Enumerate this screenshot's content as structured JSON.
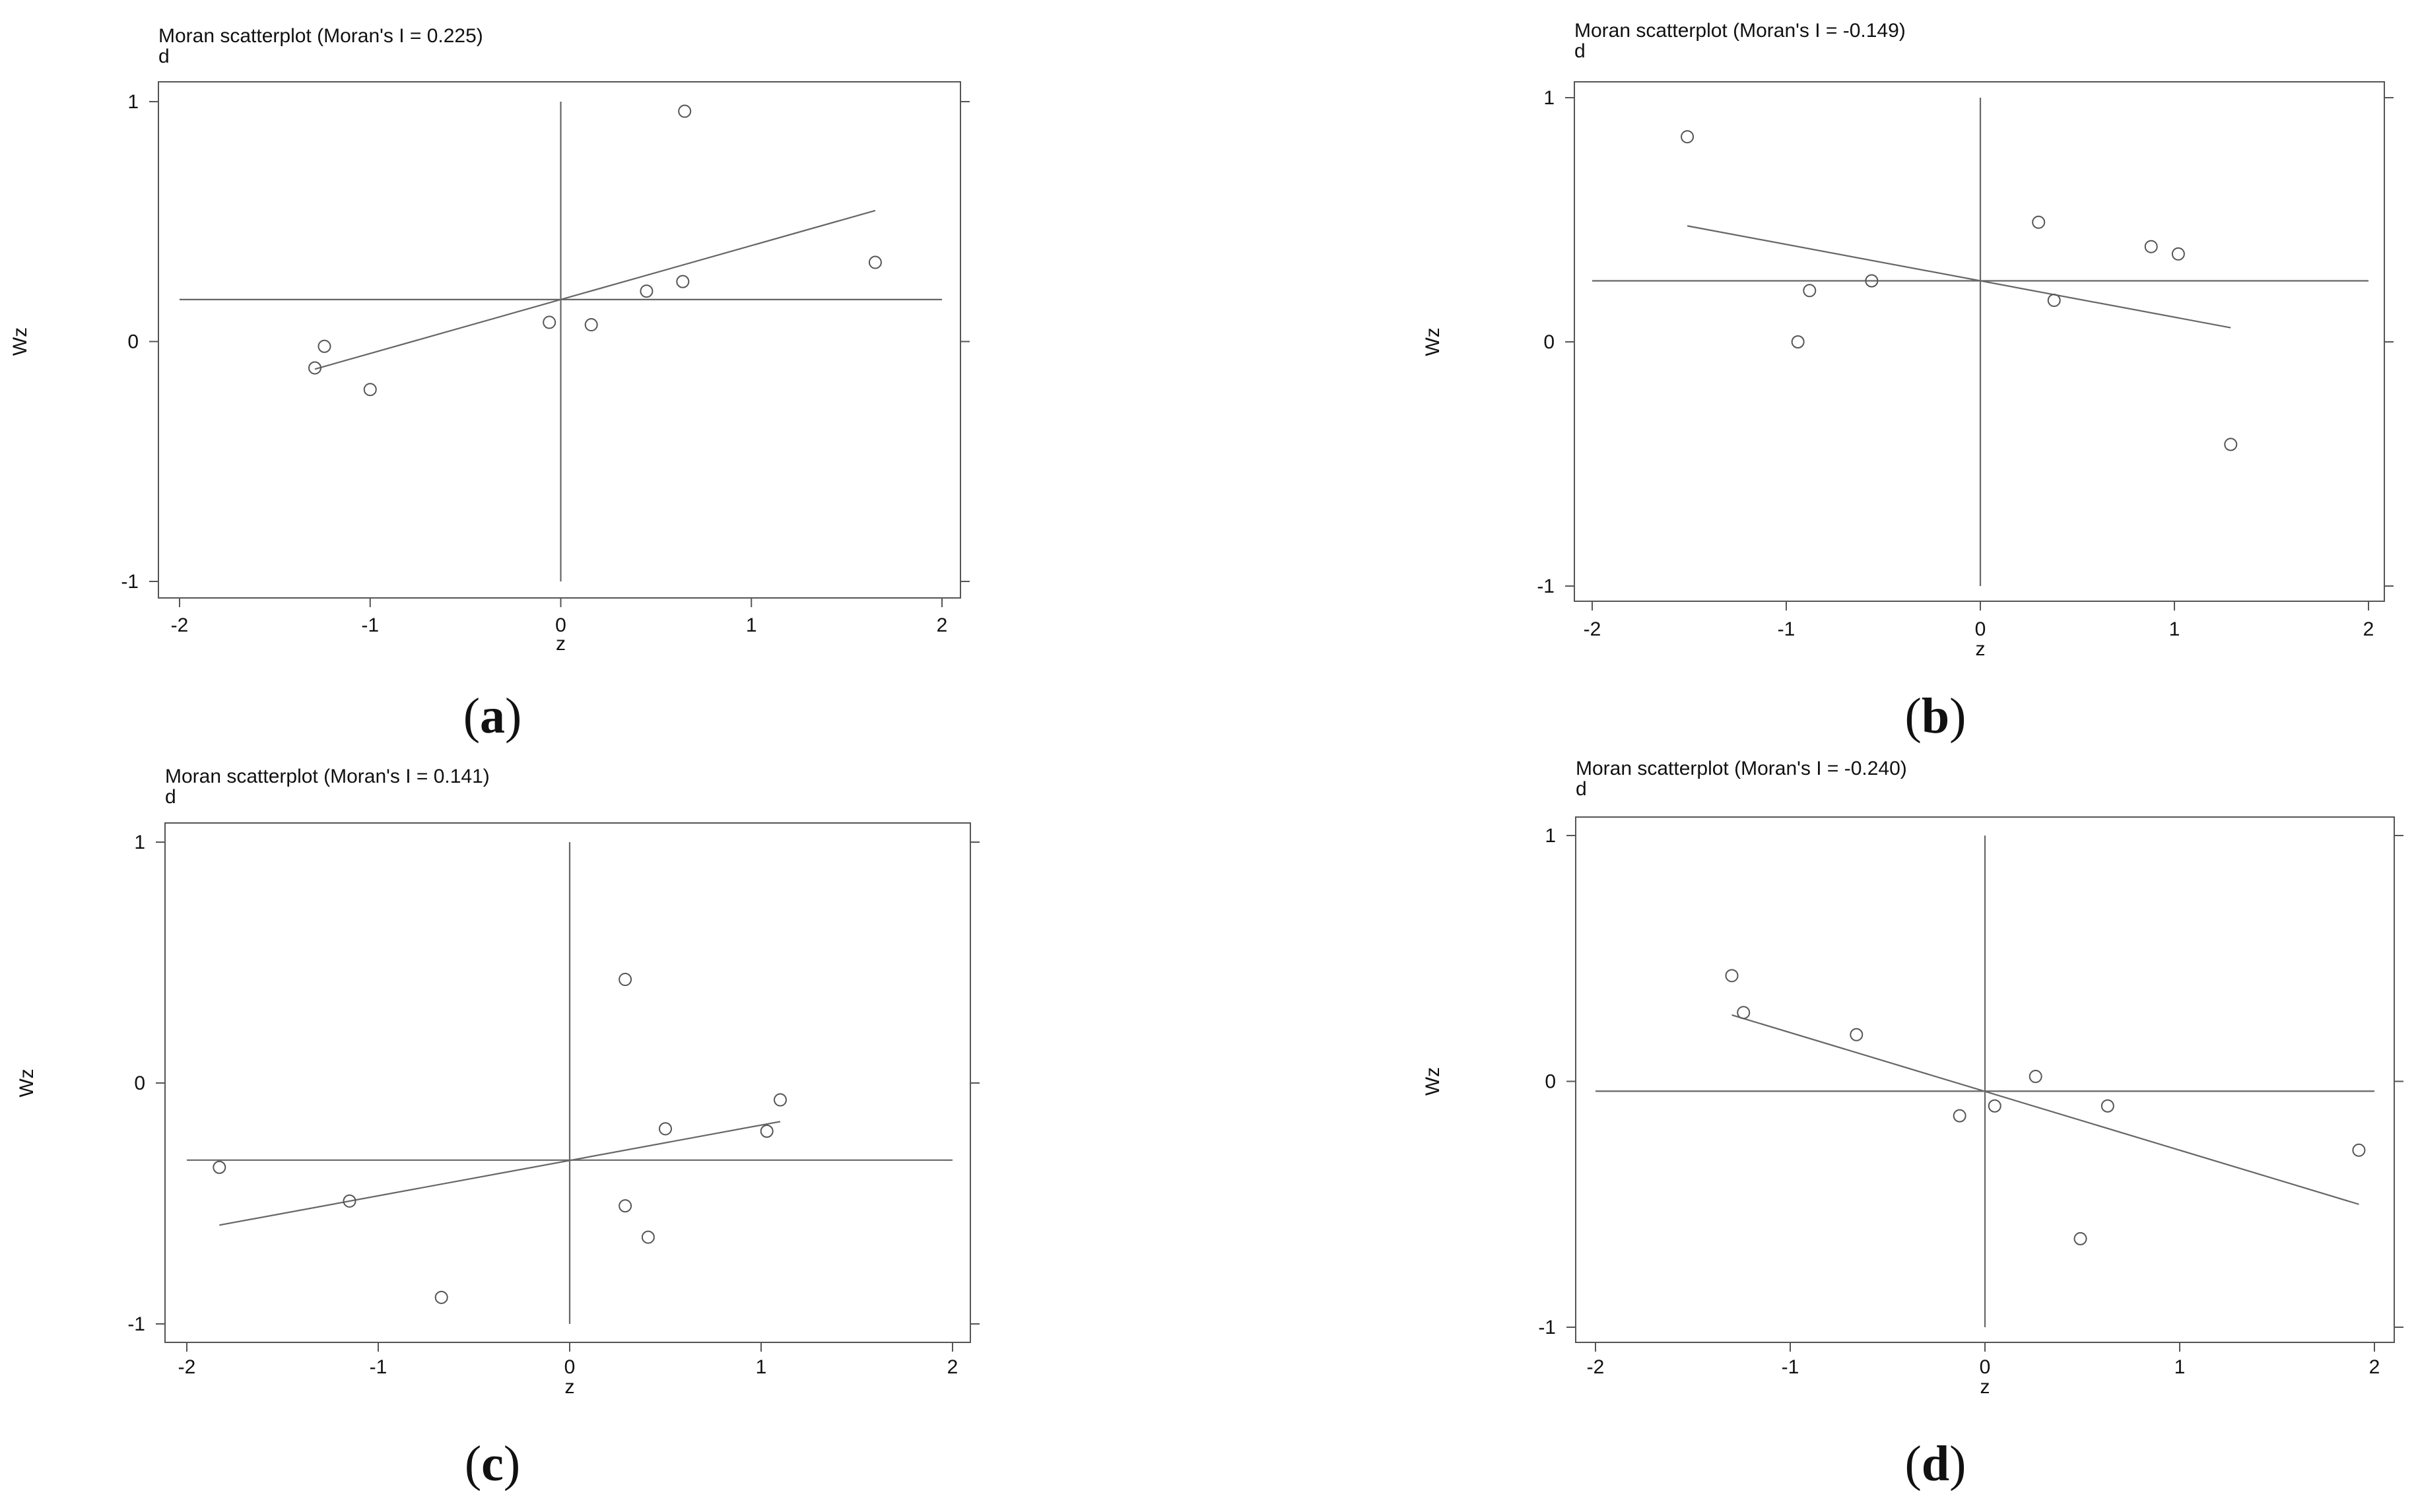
{
  "chart_data": [
    {
      "type": "scatter",
      "panel_label": "a",
      "title": "Moran scatterplot (Moran's I = 0.225)",
      "subtitle": "d",
      "xlabel": "z",
      "ylabel": "Wz",
      "xlim": [
        -2,
        2
      ],
      "ylim": [
        -1,
        1
      ],
      "xticks": [
        -2,
        -1,
        0,
        1,
        2
      ],
      "yticks": [
        -1,
        0,
        1
      ],
      "morans_i": 0.225,
      "mean_x": 0,
      "mean_y": 0.175,
      "points": [
        [
          -1.29,
          -0.11
        ],
        [
          -1.24,
          -0.02
        ],
        [
          -1.0,
          -0.2
        ],
        [
          -0.06,
          0.08
        ],
        [
          0.16,
          0.07
        ],
        [
          0.45,
          0.21
        ],
        [
          0.64,
          0.25
        ],
        [
          0.65,
          0.96
        ],
        [
          1.65,
          0.33
        ]
      ],
      "fit": [
        [
          -1.29,
          -0.115
        ],
        [
          1.65,
          0.546
        ]
      ]
    },
    {
      "type": "scatter",
      "panel_label": "b",
      "title": "Moran scatterplot (Moran's I = -0.149)",
      "subtitle": "d",
      "xlabel": "z",
      "ylabel": "Wz",
      "xlim": [
        -2,
        2
      ],
      "ylim": [
        -1,
        1
      ],
      "xticks": [
        -2,
        -1,
        0,
        1,
        2
      ],
      "yticks": [
        -1,
        0,
        1
      ],
      "morans_i": -0.149,
      "mean_x": 0,
      "mean_y": 0.25,
      "points": [
        [
          -1.51,
          0.84
        ],
        [
          -0.94,
          0.0
        ],
        [
          -0.88,
          0.21
        ],
        [
          -0.56,
          0.25
        ],
        [
          0.3,
          0.49
        ],
        [
          0.38,
          0.17
        ],
        [
          0.88,
          0.39
        ],
        [
          1.02,
          0.36
        ],
        [
          1.29,
          -0.42
        ]
      ],
      "fit": [
        [
          -1.51,
          0.475
        ],
        [
          1.29,
          0.058
        ]
      ]
    },
    {
      "type": "scatter",
      "panel_label": "c",
      "title": "Moran scatterplot (Moran's I = 0.141)",
      "subtitle": "d",
      "xlabel": "z",
      "ylabel": "Wz",
      "xlim": [
        -2,
        2
      ],
      "ylim": [
        -1,
        1
      ],
      "xticks": [
        -2,
        -1,
        0,
        1,
        2
      ],
      "yticks": [
        -1,
        0,
        1
      ],
      "morans_i": 0.141,
      "mean_x": 0,
      "mean_y": -0.32,
      "points": [
        [
          -1.83,
          -0.35
        ],
        [
          -1.15,
          -0.49
        ],
        [
          -0.67,
          -0.89
        ],
        [
          0.29,
          0.43
        ],
        [
          0.29,
          -0.51
        ],
        [
          0.41,
          -0.64
        ],
        [
          0.5,
          -0.19
        ],
        [
          1.03,
          -0.2
        ],
        [
          1.1,
          -0.07
        ]
      ],
      "fit": [
        [
          -1.83,
          -0.59
        ],
        [
          1.1,
          -0.16
        ]
      ]
    },
    {
      "type": "scatter",
      "panel_label": "d",
      "title": "Moran scatterplot (Moran's I = -0.240)",
      "subtitle": "d",
      "xlabel": "z",
      "ylabel": "Wz",
      "xlim": [
        -2,
        2
      ],
      "ylim": [
        -1,
        1
      ],
      "xticks": [
        -2,
        -1,
        0,
        1,
        2
      ],
      "yticks": [
        -1,
        0,
        1
      ],
      "morans_i": -0.24,
      "mean_x": 0,
      "mean_y": -0.04,
      "points": [
        [
          -1.3,
          0.43
        ],
        [
          -1.24,
          0.28
        ],
        [
          -0.66,
          0.19
        ],
        [
          -0.13,
          -0.14
        ],
        [
          0.05,
          -0.1
        ],
        [
          0.26,
          0.02
        ],
        [
          0.49,
          -0.64
        ],
        [
          0.63,
          -0.1
        ],
        [
          1.92,
          -0.28
        ]
      ],
      "fit": [
        [
          -1.3,
          0.27
        ],
        [
          1.92,
          -0.5
        ]
      ]
    }
  ]
}
